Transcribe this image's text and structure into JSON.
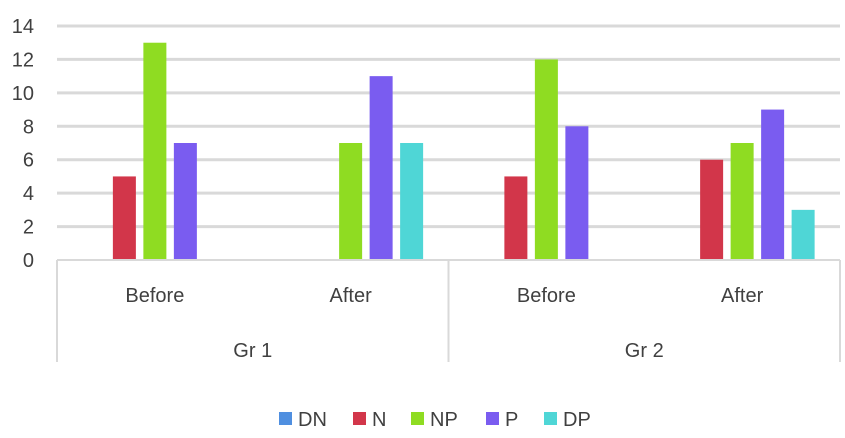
{
  "chart_data": {
    "type": "bar",
    "groups": [
      {
        "label": "Gr 1",
        "categories": [
          "Before",
          "After"
        ]
      },
      {
        "label": "Gr 2",
        "categories": [
          "Before",
          "After"
        ]
      }
    ],
    "series": [
      {
        "name": "DN",
        "color": "#4f8fe0",
        "values": [
          0,
          0,
          0,
          0
        ]
      },
      {
        "name": "N",
        "color": "#d2364a",
        "values": [
          5,
          0,
          5,
          6
        ]
      },
      {
        "name": "NP",
        "color": "#8fdc22",
        "values": [
          13,
          7,
          12,
          7
        ]
      },
      {
        "name": "P",
        "color": "#7a5cf0",
        "values": [
          7,
          11,
          8,
          9
        ]
      },
      {
        "name": "DP",
        "color": "#4fd6d6",
        "values": [
          0,
          7,
          0,
          3
        ]
      }
    ],
    "ylim": [
      0,
      14
    ],
    "yticks": [
      0,
      2,
      4,
      6,
      8,
      10,
      12,
      14
    ],
    "grid": true,
    "legend_position": "bottom",
    "title": "",
    "xlabel": "",
    "ylabel": ""
  }
}
